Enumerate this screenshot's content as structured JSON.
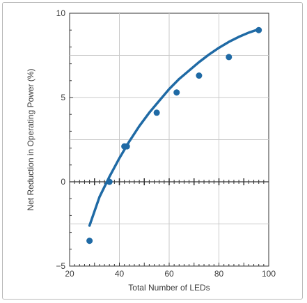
{
  "chart_data": {
    "type": "scatter",
    "xlabel": "Total Number of LEDs",
    "ylabel": "Net Reduction in Operating Power (%)",
    "xlim": [
      20,
      100
    ],
    "ylim": [
      -5,
      10
    ],
    "x_ticks": [
      20,
      40,
      60,
      80,
      100
    ],
    "y_ticks": [
      -5,
      0,
      5,
      10
    ],
    "x_tick_labels": [
      "20",
      "40",
      "60",
      "80",
      "100"
    ],
    "y_tick_labels": [
      "−5",
      "0",
      "5",
      "10"
    ],
    "grid": true,
    "points": {
      "x": [
        28,
        36,
        42,
        43,
        55,
        63,
        72,
        84,
        96
      ],
      "y": [
        -3.5,
        0,
        2.1,
        2.1,
        4.1,
        5.3,
        6.3,
        7.4,
        9.0
      ]
    },
    "fit_curve": {
      "x": [
        28,
        32,
        36,
        40,
        44,
        48,
        52,
        56,
        60,
        64,
        68,
        72,
        76,
        80,
        84,
        88,
        92,
        96
      ],
      "y": [
        -2.6,
        -0.9,
        0.3,
        1.4,
        2.4,
        3.3,
        4.1,
        4.8,
        5.5,
        6.1,
        6.6,
        7.1,
        7.55,
        7.95,
        8.3,
        8.6,
        8.85,
        9.05
      ]
    },
    "colors": {
      "series": "#1f6aa5",
      "grid": "#c9c9c9",
      "axis": "#333333"
    }
  }
}
